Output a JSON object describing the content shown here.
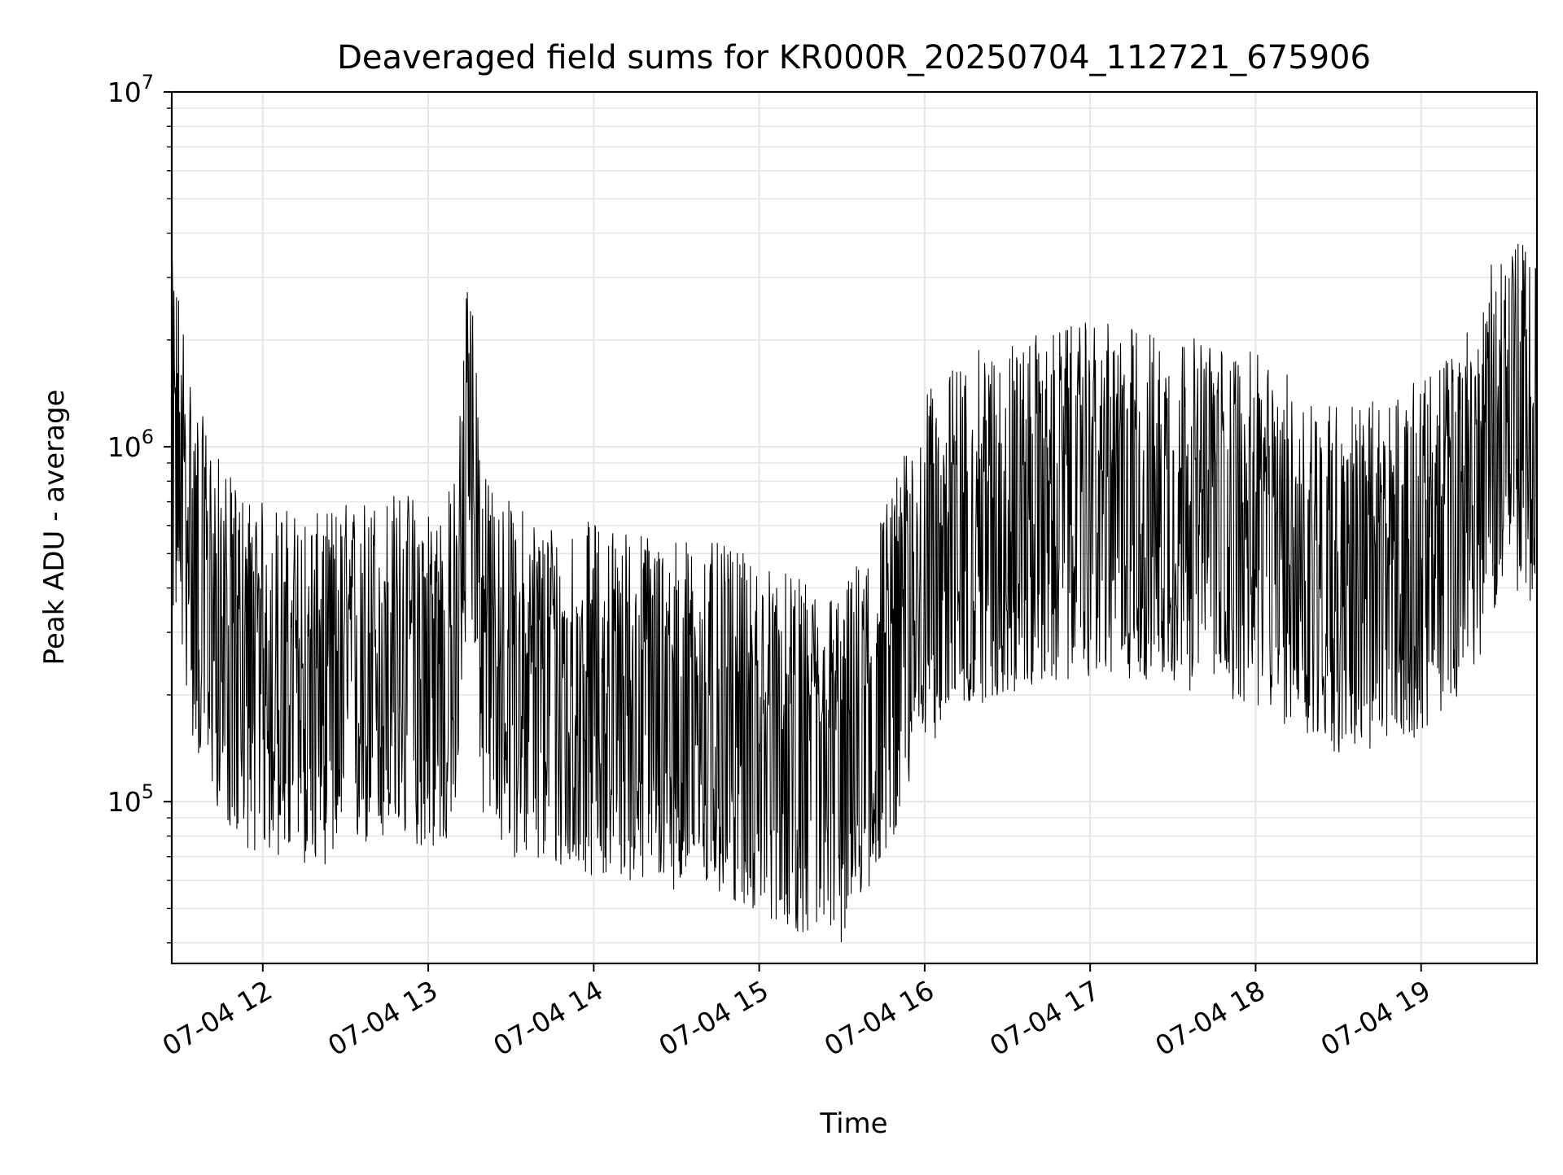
{
  "chart_data": {
    "type": "line",
    "title": "Deaveraged field sums for KR000R_20250704_112721_675906",
    "xlabel": "Time",
    "ylabel": "Peak ADU - average",
    "yscale": "log",
    "ylim": [
      35000,
      10000000
    ],
    "xlim": [
      "2025-07-04 11:27",
      "2025-07-04 19:42"
    ],
    "x_ticks": [
      {
        "time": "2025-07-04 12:00",
        "label": "07-04 12"
      },
      {
        "time": "2025-07-04 13:00",
        "label": "07-04 13"
      },
      {
        "time": "2025-07-04 14:00",
        "label": "07-04 14"
      },
      {
        "time": "2025-07-04 15:00",
        "label": "07-04 15"
      },
      {
        "time": "2025-07-04 16:00",
        "label": "07-04 16"
      },
      {
        "time": "2025-07-04 17:00",
        "label": "07-04 17"
      },
      {
        "time": "2025-07-04 18:00",
        "label": "07-04 18"
      },
      {
        "time": "2025-07-04 19:00",
        "label": "07-04 19"
      }
    ],
    "y_ticks": [
      {
        "value": 100000,
        "base": "10",
        "exp": "5"
      },
      {
        "value": 1000000,
        "base": "10",
        "exp": "6"
      },
      {
        "value": 10000000,
        "base": "10",
        "exp": "7"
      }
    ],
    "grid": true,
    "line_color": "#000000",
    "grid_color": "#e6e6e6",
    "series": [
      {
        "x": [
          "2025-07-04 11:27",
          "2025-07-04 11:30",
          "2025-07-04 11:35",
          "2025-07-04 11:40",
          "2025-07-04 11:45",
          "2025-07-04 11:50",
          "2025-07-04 11:55",
          "2025-07-04 12:00",
          "2025-07-04 12:10",
          "2025-07-04 12:20",
          "2025-07-04 12:30",
          "2025-07-04 12:40",
          "2025-07-04 12:50",
          "2025-07-04 13:00",
          "2025-07-04 13:05",
          "2025-07-04 13:10",
          "2025-07-04 13:15",
          "2025-07-04 13:20",
          "2025-07-04 13:30",
          "2025-07-04 13:40",
          "2025-07-04 13:50",
          "2025-07-04 14:00",
          "2025-07-04 14:15",
          "2025-07-04 14:30",
          "2025-07-04 14:45",
          "2025-07-04 15:00",
          "2025-07-04 15:15",
          "2025-07-04 15:30",
          "2025-07-04 15:40",
          "2025-07-04 15:50",
          "2025-07-04 16:00",
          "2025-07-04 16:15",
          "2025-07-04 16:30",
          "2025-07-04 16:45",
          "2025-07-04 17:00",
          "2025-07-04 17:15",
          "2025-07-04 17:30",
          "2025-07-04 17:45",
          "2025-07-04 18:00",
          "2025-07-04 18:15",
          "2025-07-04 18:30",
          "2025-07-04 18:45",
          "2025-07-04 19:00",
          "2025-07-04 19:10",
          "2025-07-04 19:20",
          "2025-07-04 19:30",
          "2025-07-04 19:42"
        ],
        "values": [
          1200000,
          1000000,
          500000,
          400000,
          320000,
          280000,
          260000,
          250000,
          240000,
          230000,
          250000,
          260000,
          270000,
          260000,
          250000,
          300000,
          1500000,
          300000,
          250000,
          230000,
          220000,
          220000,
          210000,
          200000,
          190000,
          170000,
          150000,
          140000,
          200000,
          300000,
          500000,
          650000,
          700000,
          750000,
          800000,
          780000,
          750000,
          700000,
          650000,
          550000,
          480000,
          480000,
          550000,
          650000,
          850000,
          1500000,
          1200000
        ]
      }
    ]
  }
}
